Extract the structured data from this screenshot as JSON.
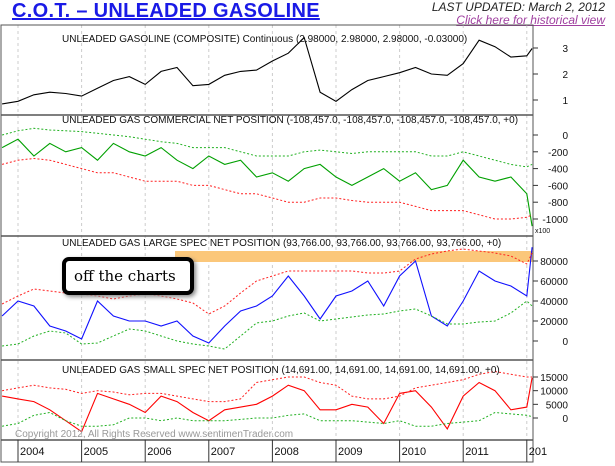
{
  "header": {
    "title": "C.O.T. – UNLEADED GASOLINE",
    "last_updated": "LAST UPDATED:  March 2, 2012",
    "historical_link": "Click here for historical view"
  },
  "annotation": {
    "callout": "off the charts",
    "highlight_color": "#fbc77a"
  },
  "copyright": "Copyright 2012, All Rights Reserved  www.sentimenTrader.com",
  "chart_data": [
    {
      "type": "line",
      "title": "UNLEADED GASOLINE (COMPOSITE) Continuous (2.98000, 2.98000, 2.98000, -0.03000)",
      "yticks": [
        1,
        2,
        3
      ],
      "ylim": [
        0.6,
        3.7
      ],
      "x": [
        "2003-10",
        "2004-01",
        "2004-04",
        "2004-07",
        "2004-10",
        "2005-01",
        "2005-04",
        "2005-07",
        "2005-10",
        "2006-01",
        "2006-04",
        "2006-07",
        "2006-10",
        "2007-01",
        "2007-04",
        "2007-07",
        "2007-10",
        "2008-01",
        "2008-04",
        "2008-07",
        "2008-10",
        "2009-01",
        "2009-04",
        "2009-07",
        "2009-10",
        "2010-01",
        "2010-04",
        "2010-07",
        "2010-10",
        "2011-01",
        "2011-04",
        "2011-07",
        "2011-10",
        "2012-01",
        "2012-02"
      ],
      "series": [
        {
          "color": "#000000",
          "style": "solid",
          "values": [
            0.85,
            0.95,
            1.2,
            1.3,
            1.25,
            1.15,
            1.45,
            1.75,
            1.9,
            1.6,
            2.1,
            2.25,
            1.55,
            1.6,
            1.95,
            2.1,
            2.15,
            2.5,
            2.8,
            3.4,
            1.3,
            0.95,
            1.4,
            1.75,
            1.9,
            2.05,
            2.25,
            2.0,
            1.95,
            2.4,
            3.3,
            3.05,
            2.65,
            2.7,
            2.98
          ]
        }
      ]
    },
    {
      "type": "line",
      "title": "UNLEADED GAS COMMERCIAL NET POSITION (-108,457.0, -108,457.0, -108,457.0, -108,457.0, +0)",
      "yticks": [
        0,
        -200,
        -400,
        -600,
        -800,
        -1000
      ],
      "ylim": [
        -1150,
        150
      ],
      "scale_note": "x100",
      "x": "same as chart 1",
      "series": [
        {
          "color": "#00a000",
          "style": "solid",
          "values": [
            -150,
            -50,
            -250,
            -100,
            -200,
            -150,
            -300,
            -100,
            -200,
            -250,
            -150,
            -300,
            -400,
            -250,
            -350,
            -300,
            -500,
            -450,
            -550,
            -400,
            -350,
            -500,
            -600,
            -500,
            -400,
            -550,
            -450,
            -650,
            -600,
            -300,
            -500,
            -550,
            -500,
            -700,
            -1085
          ]
        },
        {
          "color": "#20b020",
          "style": "dashed",
          "values": [
            0,
            50,
            80,
            60,
            50,
            40,
            20,
            0,
            -20,
            -50,
            -80,
            -100,
            -150,
            -150,
            -150,
            -200,
            -250,
            -250,
            -250,
            -200,
            -180,
            -200,
            -220,
            -200,
            -200,
            -200,
            -200,
            -250,
            -250,
            -200,
            -250,
            -300,
            -350,
            -380,
            -350
          ]
        },
        {
          "color": "#ff2020",
          "style": "dashed",
          "values": [
            -350,
            -300,
            -280,
            -300,
            -350,
            -400,
            -450,
            -450,
            -500,
            -550,
            -550,
            -550,
            -600,
            -600,
            -650,
            -700,
            -700,
            -750,
            -800,
            -800,
            -750,
            -750,
            -780,
            -800,
            -800,
            -800,
            -850,
            -900,
            -900,
            -900,
            -950,
            -1000,
            -1000,
            -980,
            -950
          ]
        }
      ]
    },
    {
      "type": "line",
      "title": "UNLEADED GAS LARGE SPEC NET POSITION (93,766.00, 93,766.00, 93,766.00, 93,766.00, +0)",
      "yticks": [
        0,
        20000,
        40000,
        60000,
        80000
      ],
      "ylim": [
        -15000,
        100000
      ],
      "x": "same as chart 1",
      "series": [
        {
          "color": "#1010ff",
          "style": "solid",
          "values": [
            25000,
            40000,
            35000,
            15000,
            10000,
            2000,
            40000,
            25000,
            20000,
            20000,
            15000,
            20000,
            5000,
            -2000,
            15000,
            30000,
            35000,
            45000,
            65000,
            45000,
            22000,
            45000,
            50000,
            60000,
            35000,
            65000,
            80000,
            25000,
            15000,
            40000,
            70000,
            60000,
            55000,
            45000,
            93766
          ]
        },
        {
          "color": "#ff2020",
          "style": "dashed",
          "values": [
            37000,
            45000,
            52000,
            50000,
            48000,
            47000,
            45000,
            42000,
            45000,
            47000,
            45000,
            42000,
            38000,
            27000,
            35000,
            48000,
            60000,
            65000,
            70000,
            70000,
            70000,
            70000,
            70000,
            68000,
            68000,
            70000,
            82000,
            87000,
            90000,
            92000,
            90000,
            88000,
            85000,
            77000,
            88000
          ]
        },
        {
          "color": "#20b020",
          "style": "dashed",
          "values": [
            -5000,
            -3000,
            5000,
            10000,
            8000,
            -3000,
            -2000,
            5000,
            12000,
            10000,
            5000,
            0,
            -3000,
            -5000,
            -8000,
            5000,
            18000,
            20000,
            25000,
            28000,
            20000,
            22000,
            24000,
            26000,
            27000,
            30000,
            32000,
            25000,
            17000,
            17000,
            19000,
            20000,
            28000,
            40000,
            35000
          ]
        }
      ]
    },
    {
      "type": "line",
      "title": "UNLEADED GAS SMALL SPEC NET POSITION (14,691.00, 14,691.00, 14,691.00, 14,691.00, +0)",
      "yticks": [
        0,
        5000,
        10000,
        15000
      ],
      "ylim": [
        -7000,
        18000
      ],
      "x": "same as chart 1",
      "xticks": [
        "2004",
        "2005",
        "2006",
        "2007",
        "2008",
        "2009",
        "2010",
        "2011",
        "201"
      ],
      "series": [
        {
          "color": "#ff0000",
          "style": "solid",
          "values": [
            8000,
            7000,
            6000,
            3000,
            -1000,
            -5000,
            9000,
            7000,
            5000,
            2000,
            8000,
            6000,
            2000,
            -1000,
            3000,
            4000,
            5000,
            8000,
            12000,
            10000,
            3000,
            3000,
            5000,
            4000,
            -2000,
            9000,
            10000,
            4000,
            -4000,
            8000,
            13000,
            10000,
            3000,
            4000,
            14691
          ]
        },
        {
          "color": "#ff2020",
          "style": "dashed",
          "values": [
            10000,
            11000,
            12000,
            11000,
            10500,
            9000,
            10000,
            9500,
            8500,
            9000,
            9000,
            8000,
            7000,
            6000,
            6000,
            7000,
            13000,
            14000,
            15000,
            15000,
            13000,
            12000,
            8000,
            7000,
            7000,
            8000,
            11000,
            12000,
            13000,
            14000,
            16000,
            17000,
            16000,
            15000,
            15000
          ]
        },
        {
          "color": "#20b020",
          "style": "dashed",
          "values": [
            -3000,
            -2000,
            1000,
            2000,
            -1000,
            -3000,
            -3000,
            -2500,
            0,
            0,
            -1000,
            0,
            -1000,
            -1000,
            -1000,
            -500,
            0,
            0,
            1000,
            1500,
            -1000,
            -1000,
            -1000,
            -1500,
            -2000,
            -1000,
            -3000,
            -3000,
            -2000,
            -1500,
            -1000,
            2000,
            1500,
            1000,
            500
          ]
        }
      ]
    }
  ]
}
